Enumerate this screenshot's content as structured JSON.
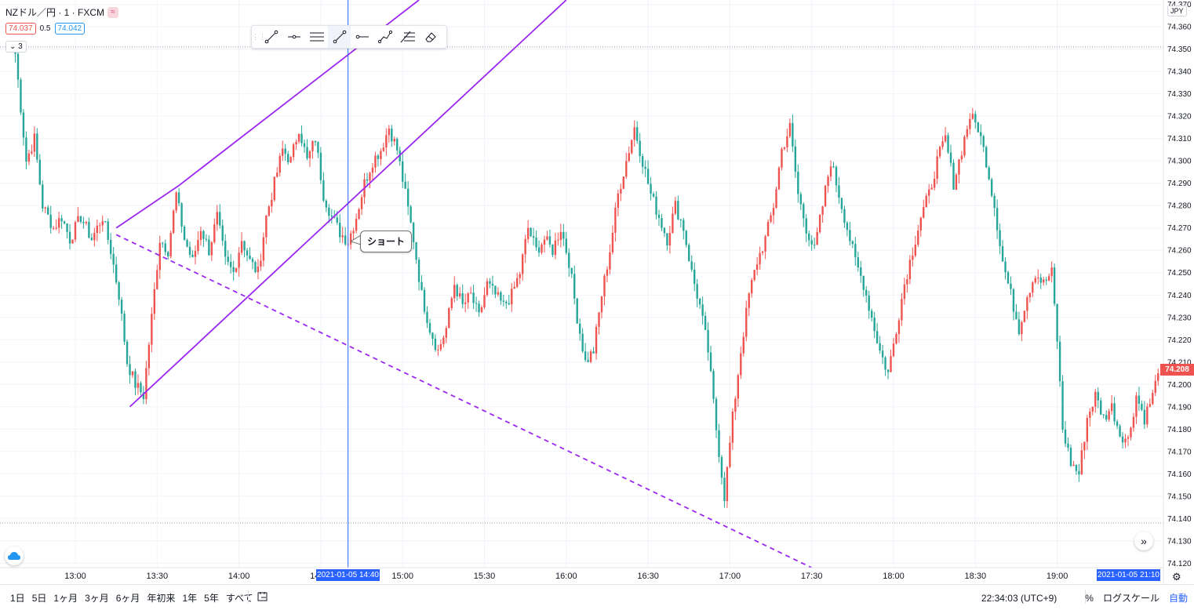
{
  "header": {
    "symbol": "NZドル／円 · 1 · FXCM",
    "sell_price": "74.037",
    "spread": "0.5",
    "buy_price": "74.042",
    "indicator_count": "3"
  },
  "colors": {
    "up": "#ef5350",
    "down": "#26a69a",
    "drawing": "#9c27f0",
    "crosshair": "#2962ff",
    "grid": "#f0f3fa"
  },
  "drawing_toolbar": {
    "tools": [
      "trend-line-icon",
      "horizontal-ray-icon",
      "parallel-channel-icon",
      "trend-line-icon",
      "horizontal-ray-icon",
      "path-icon",
      "fib-retracement-icon",
      "eraser-icon"
    ],
    "active_index": 3
  },
  "annotation": {
    "text": "ショート"
  },
  "axis": {
    "currency": "JPY",
    "current_price": "74.208",
    "crosshair_time": "2021-01-05   14:40",
    "last_time": "2021-01-05   21:10"
  },
  "chart_data": {
    "type": "candlestick",
    "title": "NZドル／円 · 1 · FXCM",
    "x_ticks": [
      "13:00",
      "13:30",
      "14:00",
      "14:30",
      "15:00",
      "15:30",
      "16:00",
      "16:30",
      "17:00",
      "17:30",
      "18:00",
      "18:30",
      "19:00"
    ],
    "y_ticks": [
      "74.370",
      "74.360",
      "74.350",
      "74.340",
      "74.330",
      "74.320",
      "74.310",
      "74.300",
      "74.290",
      "74.280",
      "74.270",
      "74.260",
      "74.250",
      "74.240",
      "74.230",
      "74.220",
      "74.210",
      "74.200",
      "74.190",
      "74.180",
      "74.170",
      "74.160",
      "74.150",
      "74.140",
      "74.130",
      "74.120"
    ],
    "ylim": [
      74.118,
      74.372
    ],
    "x_range": [
      "12:37",
      "21:10"
    ],
    "anchor_closes": [
      {
        "t": "12:38",
        "p": 74.348
      },
      {
        "t": "12:42",
        "p": 74.3
      },
      {
        "t": "12:45",
        "p": 74.31
      },
      {
        "t": "12:48",
        "p": 74.28
      },
      {
        "t": "12:52",
        "p": 74.27
      },
      {
        "t": "12:55",
        "p": 74.275
      },
      {
        "t": "12:58",
        "p": 74.265
      },
      {
        "t": "13:02",
        "p": 74.275
      },
      {
        "t": "13:06",
        "p": 74.265
      },
      {
        "t": "13:10",
        "p": 74.275
      },
      {
        "t": "13:13",
        "p": 74.26
      },
      {
        "t": "13:16",
        "p": 74.24
      },
      {
        "t": "13:19",
        "p": 74.21
      },
      {
        "t": "13:22",
        "p": 74.2
      },
      {
        "t": "13:25",
        "p": 74.195
      },
      {
        "t": "13:28",
        "p": 74.23
      },
      {
        "t": "13:31",
        "p": 74.265
      },
      {
        "t": "13:34",
        "p": 74.26
      },
      {
        "t": "13:37",
        "p": 74.285
      },
      {
        "t": "13:40",
        "p": 74.265
      },
      {
        "t": "13:43",
        "p": 74.255
      },
      {
        "t": "13:46",
        "p": 74.27
      },
      {
        "t": "13:49",
        "p": 74.26
      },
      {
        "t": "13:52",
        "p": 74.275
      },
      {
        "t": "13:55",
        "p": 74.255
      },
      {
        "t": "13:58",
        "p": 74.25
      },
      {
        "t": "14:01",
        "p": 74.265
      },
      {
        "t": "14:04",
        "p": 74.255
      },
      {
        "t": "14:07",
        "p": 74.25
      },
      {
        "t": "14:10",
        "p": 74.275
      },
      {
        "t": "14:13",
        "p": 74.29
      },
      {
        "t": "14:16",
        "p": 74.305
      },
      {
        "t": "14:19",
        "p": 74.3
      },
      {
        "t": "14:22",
        "p": 74.315
      },
      {
        "t": "14:25",
        "p": 74.3
      },
      {
        "t": "14:28",
        "p": 74.31
      },
      {
        "t": "14:31",
        "p": 74.285
      },
      {
        "t": "14:34",
        "p": 74.275
      },
      {
        "t": "14:37",
        "p": 74.268
      },
      {
        "t": "14:40",
        "p": 74.264
      },
      {
        "t": "14:43",
        "p": 74.275
      },
      {
        "t": "14:46",
        "p": 74.29
      },
      {
        "t": "14:49",
        "p": 74.3
      },
      {
        "t": "14:52",
        "p": 74.305
      },
      {
        "t": "14:55",
        "p": 74.315
      },
      {
        "t": "14:58",
        "p": 74.305
      },
      {
        "t": "15:01",
        "p": 74.285
      },
      {
        "t": "15:04",
        "p": 74.265
      },
      {
        "t": "15:07",
        "p": 74.24
      },
      {
        "t": "15:10",
        "p": 74.225
      },
      {
        "t": "15:13",
        "p": 74.215
      },
      {
        "t": "15:16",
        "p": 74.225
      },
      {
        "t": "15:19",
        "p": 74.245
      },
      {
        "t": "15:22",
        "p": 74.235
      },
      {
        "t": "15:25",
        "p": 74.24
      },
      {
        "t": "15:28",
        "p": 74.23
      },
      {
        "t": "15:31",
        "p": 74.245
      },
      {
        "t": "15:34",
        "p": 74.24
      },
      {
        "t": "15:37",
        "p": 74.235
      },
      {
        "t": "15:40",
        "p": 74.24
      },
      {
        "t": "15:43",
        "p": 74.25
      },
      {
        "t": "15:46",
        "p": 74.27
      },
      {
        "t": "15:49",
        "p": 74.26
      },
      {
        "t": "15:52",
        "p": 74.265
      },
      {
        "t": "15:55",
        "p": 74.26
      },
      {
        "t": "15:58",
        "p": 74.27
      },
      {
        "t": "16:01",
        "p": 74.255
      },
      {
        "t": "16:04",
        "p": 74.23
      },
      {
        "t": "16:07",
        "p": 74.21
      },
      {
        "t": "16:10",
        "p": 74.215
      },
      {
        "t": "16:13",
        "p": 74.24
      },
      {
        "t": "16:16",
        "p": 74.26
      },
      {
        "t": "16:19",
        "p": 74.285
      },
      {
        "t": "16:22",
        "p": 74.3
      },
      {
        "t": "16:25",
        "p": 74.315
      },
      {
        "t": "16:28",
        "p": 74.3
      },
      {
        "t": "16:31",
        "p": 74.285
      },
      {
        "t": "16:34",
        "p": 74.275
      },
      {
        "t": "16:37",
        "p": 74.265
      },
      {
        "t": "16:40",
        "p": 74.28
      },
      {
        "t": "16:43",
        "p": 74.27
      },
      {
        "t": "16:46",
        "p": 74.25
      },
      {
        "t": "16:49",
        "p": 74.235
      },
      {
        "t": "16:52",
        "p": 74.215
      },
      {
        "t": "16:55",
        "p": 74.18
      },
      {
        "t": "16:58",
        "p": 74.15
      },
      {
        "t": "17:01",
        "p": 74.185
      },
      {
        "t": "17:04",
        "p": 74.215
      },
      {
        "t": "17:07",
        "p": 74.24
      },
      {
        "t": "17:10",
        "p": 74.255
      },
      {
        "t": "17:13",
        "p": 74.265
      },
      {
        "t": "17:16",
        "p": 74.28
      },
      {
        "t": "17:19",
        "p": 74.305
      },
      {
        "t": "17:22",
        "p": 74.315
      },
      {
        "t": "17:25",
        "p": 74.285
      },
      {
        "t": "17:28",
        "p": 74.27
      },
      {
        "t": "17:31",
        "p": 74.26
      },
      {
        "t": "17:34",
        "p": 74.28
      },
      {
        "t": "17:37",
        "p": 74.3
      },
      {
        "t": "17:40",
        "p": 74.285
      },
      {
        "t": "17:43",
        "p": 74.27
      },
      {
        "t": "17:46",
        "p": 74.255
      },
      {
        "t": "17:49",
        "p": 74.245
      },
      {
        "t": "17:52",
        "p": 74.23
      },
      {
        "t": "17:55",
        "p": 74.215
      },
      {
        "t": "17:58",
        "p": 74.205
      },
      {
        "t": "18:01",
        "p": 74.225
      },
      {
        "t": "18:04",
        "p": 74.245
      },
      {
        "t": "18:07",
        "p": 74.26
      },
      {
        "t": "18:10",
        "p": 74.275
      },
      {
        "t": "18:13",
        "p": 74.285
      },
      {
        "t": "18:16",
        "p": 74.3
      },
      {
        "t": "18:19",
        "p": 74.31
      },
      {
        "t": "18:22",
        "p": 74.29
      },
      {
        "t": "18:25",
        "p": 74.305
      },
      {
        "t": "18:28",
        "p": 74.32
      },
      {
        "t": "18:31",
        "p": 74.315
      },
      {
        "t": "18:34",
        "p": 74.3
      },
      {
        "t": "18:37",
        "p": 74.28
      },
      {
        "t": "18:40",
        "p": 74.255
      },
      {
        "t": "18:43",
        "p": 74.24
      },
      {
        "t": "18:46",
        "p": 74.225
      },
      {
        "t": "18:49",
        "p": 74.24
      },
      {
        "t": "18:52",
        "p": 74.25
      },
      {
        "t": "18:55",
        "p": 74.245
      },
      {
        "t": "18:58",
        "p": 74.25
      },
      {
        "t": "19:00",
        "p": 74.22
      },
      {
        "t": "19:02",
        "p": 74.18
      },
      {
        "t": "19:05",
        "p": 74.165
      },
      {
        "t": "19:08",
        "p": 74.16
      },
      {
        "t": "19:11",
        "p": 74.185
      },
      {
        "t": "19:14",
        "p": 74.195
      },
      {
        "t": "19:17",
        "p": 74.185
      },
      {
        "t": "19:20",
        "p": 74.19
      },
      {
        "t": "19:23",
        "p": 74.178
      },
      {
        "t": "19:26",
        "p": 74.175
      },
      {
        "t": "19:29",
        "p": 74.195
      },
      {
        "t": "19:32",
        "p": 74.185
      },
      {
        "t": "19:35",
        "p": 74.195
      },
      {
        "t": "19:37",
        "p": 74.205
      }
    ],
    "drawings": [
      {
        "type": "trend-line",
        "from": {
          "t": "13:15",
          "p": 74.27
        },
        "to": {
          "t": "13:38",
          "p": 74.289
        }
      },
      {
        "type": "trend-line",
        "from": {
          "t": "13:38",
          "p": 74.289
        },
        "to": {
          "t": "15:06",
          "p": 74.372
        }
      },
      {
        "type": "trend-line",
        "from": {
          "t": "13:20",
          "p": 74.19
        },
        "to": {
          "t": "16:00",
          "p": 74.372
        }
      },
      {
        "type": "trend-line-dashed",
        "from": {
          "t": "13:15",
          "p": 74.267
        },
        "to": {
          "t": "17:30",
          "p": 74.118
        }
      }
    ],
    "horizontal_levels": [
      74.351,
      74.138
    ],
    "crosshair": {
      "t": "14:40"
    },
    "annotation": {
      "t": "14:41",
      "p": 74.264,
      "text": "ショート"
    },
    "last_price": 74.208
  },
  "bottom": {
    "ranges": [
      "1日",
      "5日",
      "1ヶ月",
      "3ヶ月",
      "6ヶ月",
      "年初来",
      "1年",
      "5年",
      "すべて"
    ],
    "goto_icon": "goto-date-icon",
    "clock": "22:34:03 (UTC+9)",
    "percent": "%",
    "log": "ログスケール",
    "auto": "自動"
  }
}
